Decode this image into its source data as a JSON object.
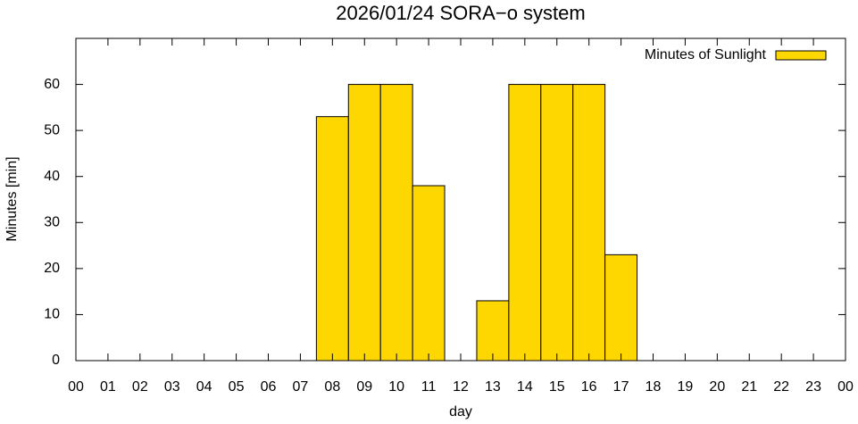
{
  "chart_data": {
    "type": "bar",
    "title": "2026/01/24 SORA−o system",
    "xlabel": "day",
    "ylabel": "Minutes [min]",
    "x": [
      8,
      9,
      10,
      11,
      12,
      13,
      14,
      15,
      16,
      17
    ],
    "series": [
      {
        "name": "Minutes of Sunlight",
        "color": "#ffd700",
        "values": [
          53,
          60,
          60,
          38,
          0,
          13,
          60,
          60,
          60,
          23
        ]
      }
    ],
    "xlim": [
      0,
      24
    ],
    "xticks": [
      {
        "value": 0,
        "label": "00"
      },
      {
        "value": 1,
        "label": "01"
      },
      {
        "value": 2,
        "label": "02"
      },
      {
        "value": 3,
        "label": "03"
      },
      {
        "value": 4,
        "label": "04"
      },
      {
        "value": 5,
        "label": "05"
      },
      {
        "value": 6,
        "label": "06"
      },
      {
        "value": 7,
        "label": "07"
      },
      {
        "value": 8,
        "label": "08"
      },
      {
        "value": 9,
        "label": "09"
      },
      10,
      11,
      12,
      13,
      14,
      15,
      16,
      17,
      18,
      19,
      20,
      21,
      22,
      23,
      {
        "value": 24,
        "label": "00"
      }
    ],
    "ylim": [
      0,
      70
    ],
    "yticks": [
      0,
      10,
      20,
      30,
      40,
      50,
      60
    ],
    "bar_width": 1,
    "legend": "top-right"
  }
}
